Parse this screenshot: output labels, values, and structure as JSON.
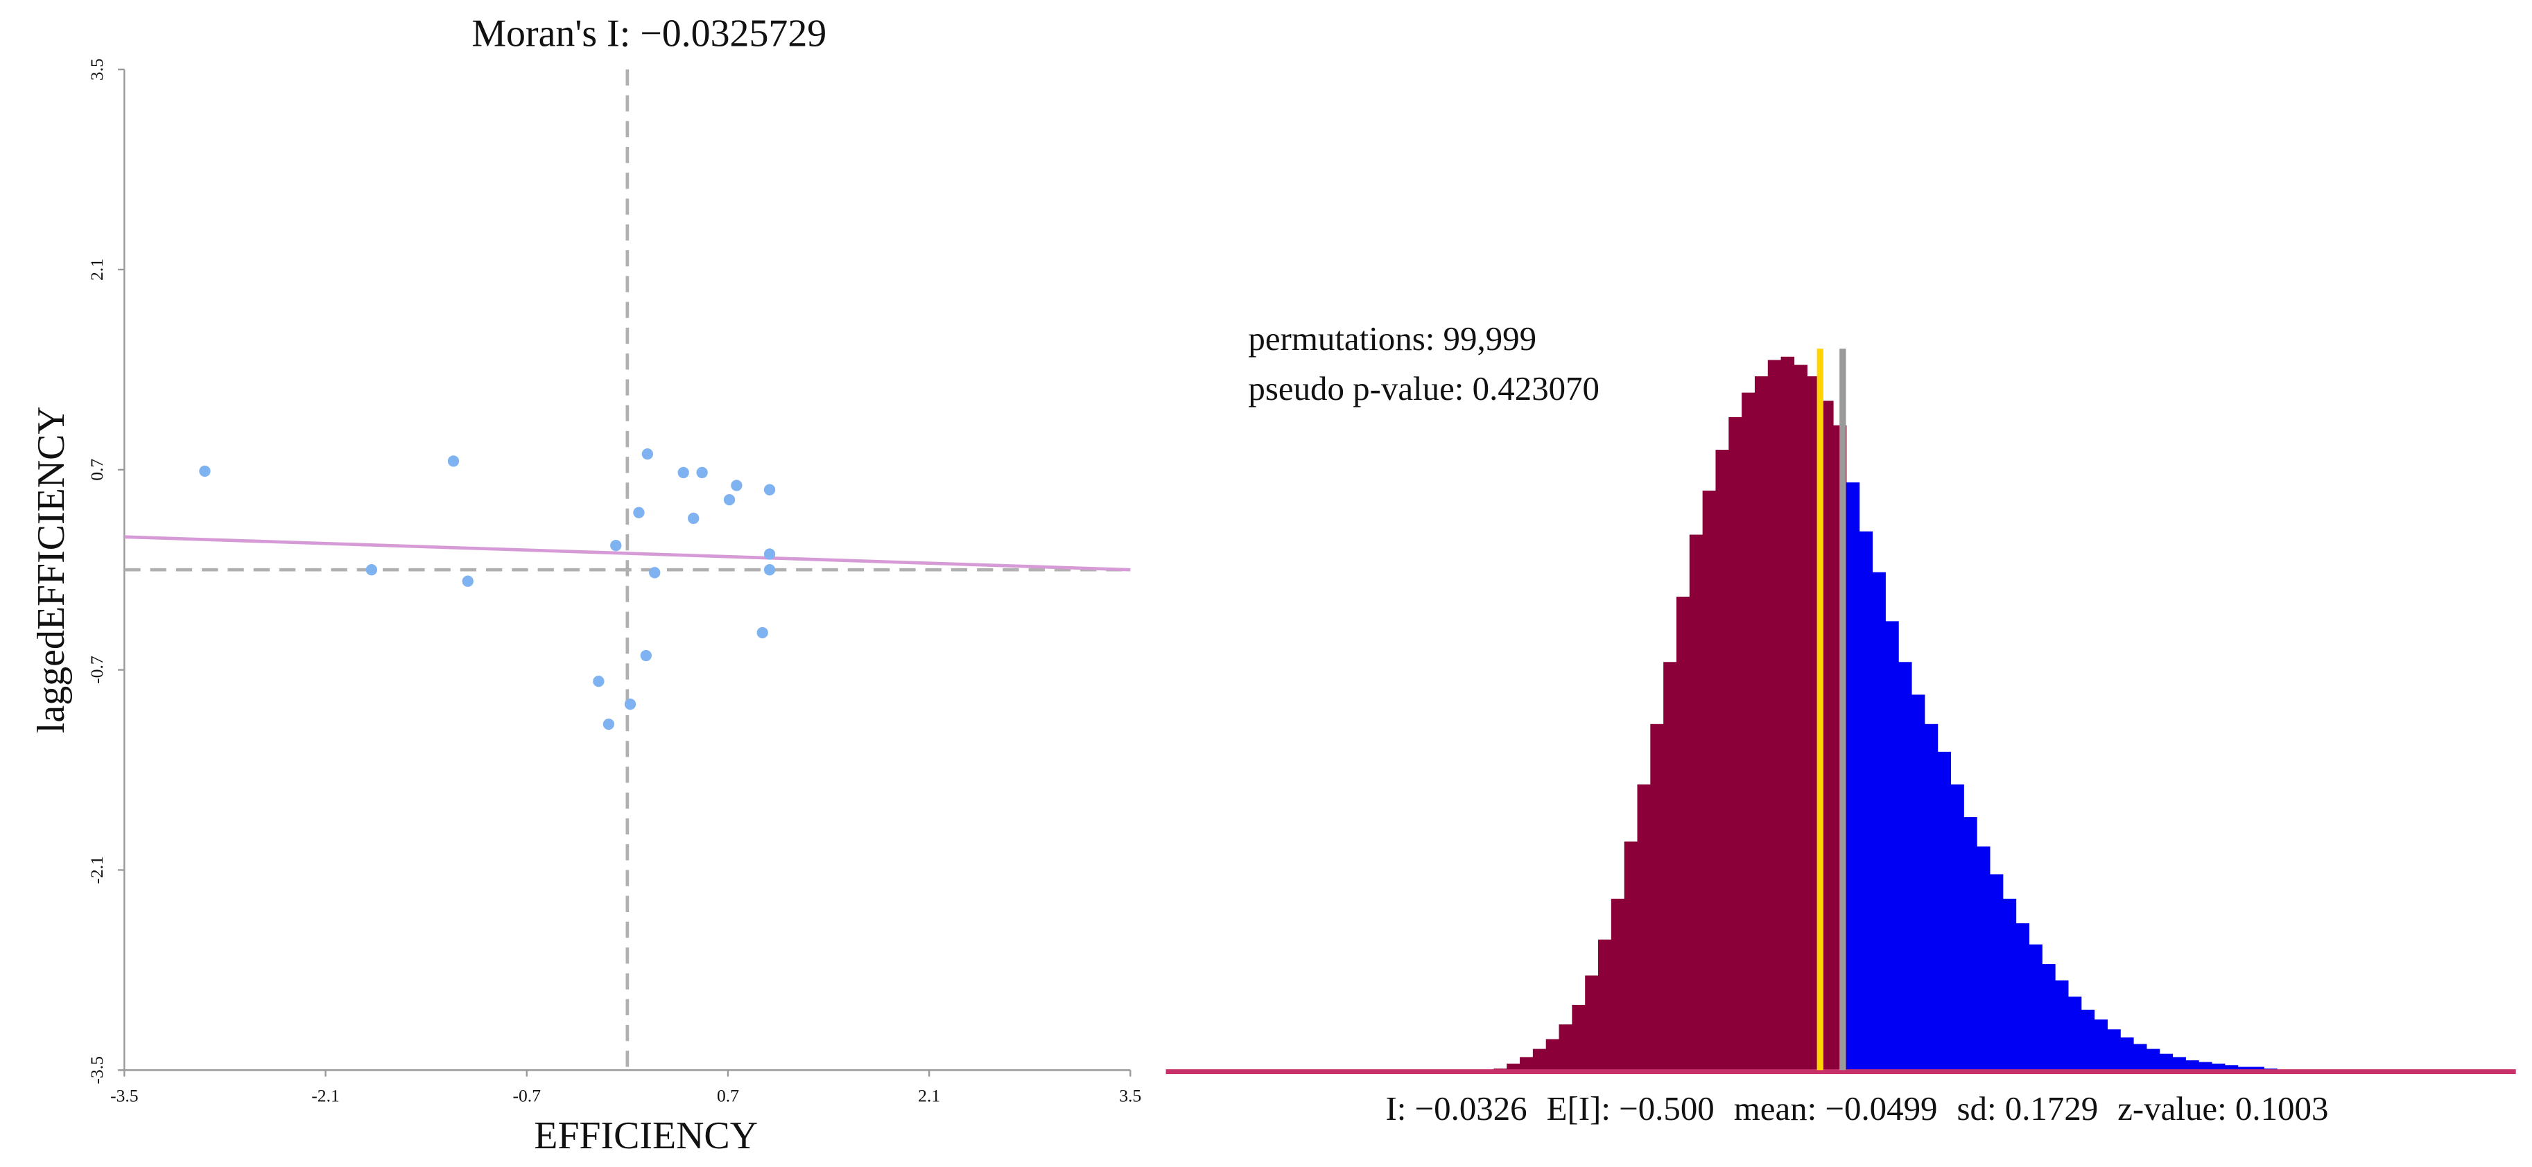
{
  "chart_data": [
    {
      "type": "scatter",
      "title": "Moran's I: −0.0325729",
      "xlabel": "EFFICIENCY",
      "ylabel": "laggedEFFICIENCY",
      "xlim": [
        -3.5,
        3.5
      ],
      "ylim": [
        -3.5,
        3.5
      ],
      "xticks": [
        -3.5,
        -2.1,
        -0.7,
        0.7,
        2.1,
        3.5
      ],
      "yticks": [
        -3.5,
        -2.1,
        -0.7,
        0.7,
        2.1,
        3.5
      ],
      "color": "#7fb2f0",
      "x": [
        -2.94,
        -1.21,
        -1.78,
        -1.11,
        -0.08,
        0.14,
        0.08,
        0.19,
        0.39,
        0.52,
        0.46,
        0.76,
        0.71,
        0.99,
        0.99,
        0.99,
        0.94,
        0.13,
        -0.2,
        0.02,
        -0.13
      ],
      "y": [
        0.69,
        0.76,
        0.0,
        -0.08,
        0.17,
        0.81,
        0.4,
        -0.02,
        0.68,
        0.68,
        0.36,
        0.59,
        0.49,
        0.56,
        0.11,
        0.0,
        -0.44,
        -0.6,
        -0.78,
        -0.94,
        -1.08
      ],
      "regression": {
        "x": [
          -3.5,
          3.5
        ],
        "y": [
          0.23,
          0.0
        ],
        "color": "#d69ad6"
      },
      "reference_lines": {
        "x": 0,
        "y": 0,
        "color": "#b0b0b0"
      }
    },
    {
      "type": "histogram",
      "annotations": [
        "permutations: 99,999",
        "pseudo p-value: 0.423070"
      ],
      "stats": [
        "I: −0.0326",
        "E[I]: −0.500",
        "mean: −0.0499",
        "sd: 0.1729",
        "z-value: 0.1003"
      ],
      "bins": [
        -0.3,
        -0.29,
        -0.28,
        -0.27,
        -0.26,
        -0.25,
        -0.24,
        -0.23,
        -0.22,
        -0.21,
        -0.2,
        -0.19,
        -0.18,
        -0.17,
        -0.16,
        -0.15,
        -0.14,
        -0.13,
        -0.12,
        -0.11,
        -0.1,
        -0.09,
        -0.08,
        -0.07,
        -0.06,
        -0.05,
        -0.04,
        -0.03,
        -0.02,
        -0.01,
        0.0,
        0.01,
        0.02,
        0.03,
        0.04,
        0.05,
        0.06,
        0.07,
        0.08,
        0.09,
        0.1,
        0.11,
        0.12,
        0.13,
        0.14,
        0.15,
        0.16,
        0.17,
        0.18,
        0.19,
        0.2,
        0.21,
        0.22,
        0.23,
        0.24,
        0.25,
        0.26,
        0.27,
        0.28,
        0.29,
        0.3
      ],
      "counts": [
        4,
        16,
        32,
        52,
        76,
        112,
        160,
        232,
        320,
        420,
        560,
        700,
        848,
        1000,
        1160,
        1312,
        1420,
        1520,
        1600,
        1660,
        1700,
        1740,
        1748,
        1728,
        1700,
        1640,
        1580,
        1440,
        1320,
        1220,
        1100,
        1000,
        920,
        848,
        780,
        700,
        620,
        548,
        480,
        420,
        360,
        308,
        260,
        220,
        180,
        148,
        124,
        100,
        80,
        64,
        52,
        40,
        32,
        24,
        20,
        16,
        12,
        8,
        8,
        4
      ],
      "colors": {
        "below": "#8b0038",
        "above": "#0000f5",
        "baseline": "#c8306a"
      },
      "reference_lines": [
        {
          "value": -0.0499,
          "color": "#ffd400"
        },
        {
          "value": -0.0326,
          "color": "#9a9a9a"
        }
      ]
    }
  ]
}
